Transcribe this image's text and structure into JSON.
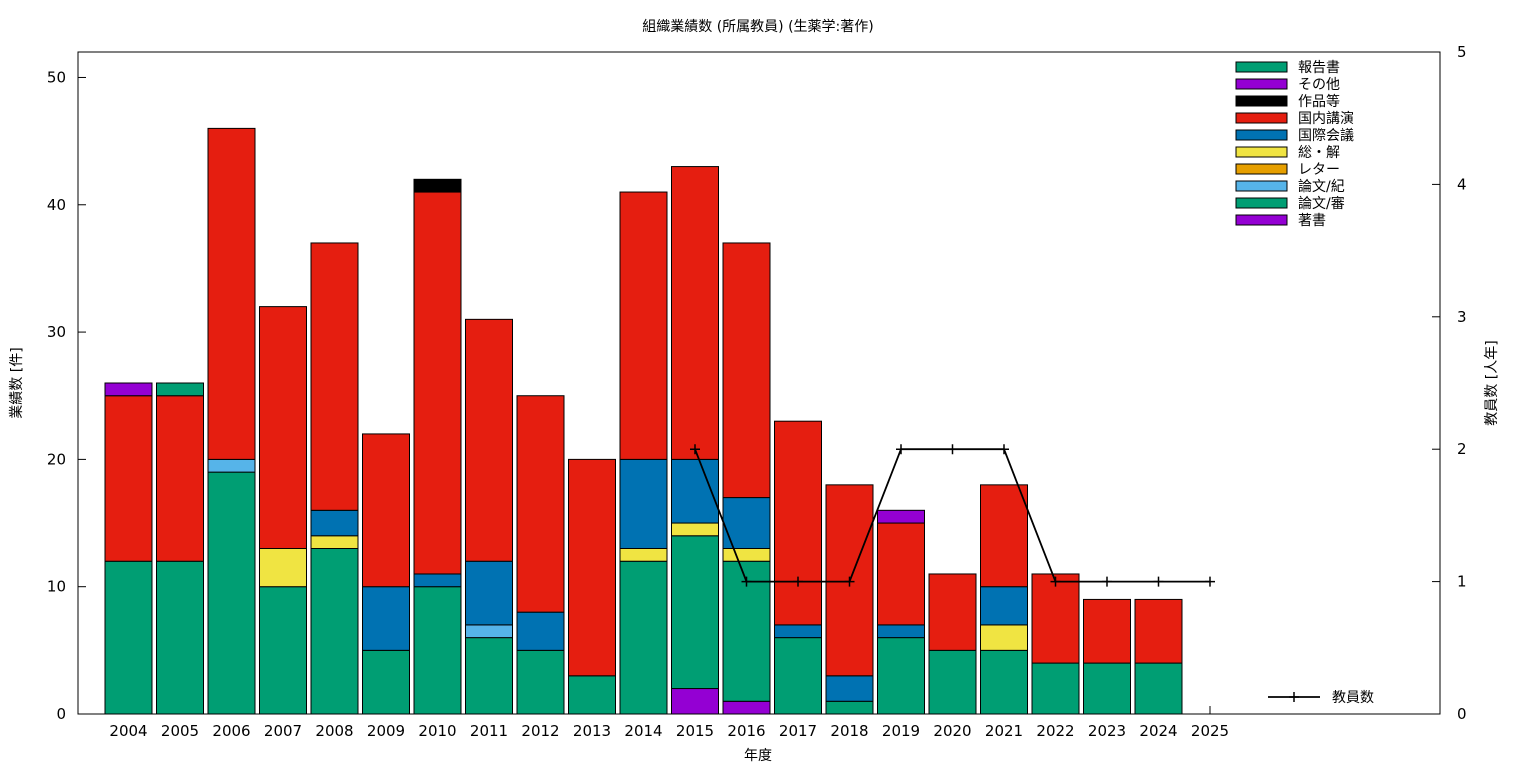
{
  "chart_data": {
    "type": "bar",
    "title": "組織業績数 (所属教員) (生薬学:著作)",
    "xlabel": "年度",
    "ylabel": "業績数 [件]",
    "y2label": "教員数 [人年]",
    "ylim": [
      0,
      52
    ],
    "y2lim": [
      0,
      5
    ],
    "yticks": [
      0,
      10,
      20,
      30,
      40,
      50
    ],
    "y2ticks": [
      0,
      1,
      2,
      3,
      4,
      5
    ],
    "stacked": true,
    "legend_position": "top-right",
    "categories": [
      "2004",
      "2005",
      "2006",
      "2007",
      "2008",
      "2009",
      "2010",
      "2011",
      "2012",
      "2013",
      "2014",
      "2015",
      "2016",
      "2017",
      "2018",
      "2019",
      "2020",
      "2021",
      "2022",
      "2023",
      "2024",
      "2025"
    ],
    "series": [
      {
        "name": "著書",
        "color": "#9400d3",
        "values": [
          0,
          0,
          0,
          0,
          0,
          0,
          0,
          0,
          0,
          0,
          0,
          2,
          1,
          0,
          0,
          0,
          0,
          0,
          0,
          0,
          0,
          0
        ]
      },
      {
        "name": "論文/審",
        "color": "#009e73",
        "values": [
          12,
          12,
          19,
          10,
          13,
          5,
          10,
          6,
          5,
          3,
          12,
          12,
          11,
          6,
          1,
          6,
          5,
          5,
          4,
          4,
          4,
          0
        ]
      },
      {
        "name": "論文/紀",
        "color": "#56b4e9",
        "values": [
          0,
          0,
          1,
          0,
          0,
          0,
          0,
          1,
          0,
          0,
          0,
          0,
          0,
          0,
          0,
          0,
          0,
          0,
          0,
          0,
          0,
          0
        ]
      },
      {
        "name": "レター",
        "color": "#e69f00",
        "values": [
          0,
          0,
          0,
          0,
          0,
          0,
          0,
          0,
          0,
          0,
          0,
          0,
          0,
          0,
          0,
          0,
          0,
          0,
          0,
          0,
          0,
          0
        ]
      },
      {
        "name": "総・解",
        "color": "#f0e442",
        "values": [
          0,
          0,
          0,
          3,
          1,
          0,
          0,
          0,
          0,
          0,
          1,
          1,
          1,
          0,
          0,
          0,
          0,
          2,
          0,
          0,
          0,
          0
        ]
      },
      {
        "name": "国際会議",
        "color": "#0072b2",
        "values": [
          0,
          0,
          0,
          0,
          2,
          5,
          1,
          5,
          3,
          0,
          7,
          5,
          4,
          1,
          2,
          1,
          0,
          3,
          0,
          0,
          0,
          0
        ]
      },
      {
        "name": "国内講演",
        "color": "#e51e10",
        "values": [
          13,
          13,
          26,
          19,
          21,
          12,
          30,
          19,
          17,
          17,
          21,
          23,
          20,
          16,
          15,
          8,
          6,
          8,
          7,
          5,
          5,
          0
        ]
      },
      {
        "name": "作品等",
        "color": "#000000",
        "values": [
          0,
          0,
          0,
          0,
          0,
          0,
          1,
          0,
          0,
          0,
          0,
          0,
          0,
          0,
          0,
          0,
          0,
          0,
          0,
          0,
          0,
          0
        ]
      },
      {
        "name": "その他",
        "color": "#9400d3",
        "values": [
          1,
          0,
          0,
          0,
          0,
          0,
          0,
          0,
          0,
          0,
          0,
          0,
          0,
          0,
          0,
          1,
          0,
          0,
          0,
          0,
          0,
          0
        ]
      },
      {
        "name": "報告書",
        "color": "#009e73",
        "values": [
          0,
          1,
          0,
          0,
          0,
          0,
          0,
          0,
          0,
          0,
          0,
          0,
          0,
          0,
          0,
          0,
          0,
          0,
          0,
          0,
          0,
          0
        ]
      }
    ],
    "line_series": {
      "name": "教員数",
      "color": "#000000",
      "axis": "y2",
      "x": [
        "2015",
        "2016",
        "2017",
        "2018",
        "2019",
        "2020",
        "2021",
        "2022",
        "2023",
        "2024",
        "2025"
      ],
      "values": [
        2,
        1,
        1,
        1,
        2,
        2,
        2,
        1,
        1,
        1,
        1
      ]
    },
    "legend_order": [
      "報告書",
      "その他",
      "作品等",
      "国内講演",
      "国際会議",
      "総・解",
      "レター",
      "論文/紀",
      "論文/審",
      "著書"
    ]
  }
}
